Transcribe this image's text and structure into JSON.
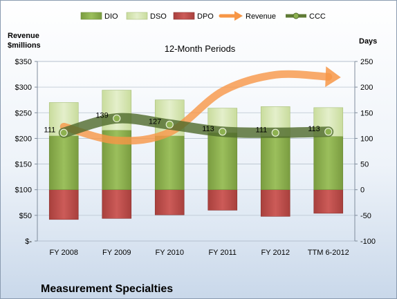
{
  "chart_data": {
    "type": "bar",
    "title": "12-Month Periods",
    "company": "Measurement Specialties",
    "left_axis": {
      "title": [
        "Revenue",
        "$millions"
      ],
      "range": [
        0,
        350
      ],
      "ticks": [
        0,
        50,
        100,
        150,
        200,
        250,
        300,
        350
      ],
      "tick_labels": [
        "$-",
        "$50",
        "$100",
        "$150",
        "$200",
        "$250",
        "$300",
        "$350"
      ]
    },
    "right_axis": {
      "title": "Days",
      "range": [
        -100,
        250
      ],
      "ticks": [
        -100,
        -50,
        0,
        50,
        100,
        150,
        200,
        250
      ],
      "tick_labels": [
        "-100",
        "-50",
        "0",
        "50",
        "100",
        "150",
        "200",
        "250"
      ]
    },
    "categories": [
      "FY 2008",
      "FY 2009",
      "FY 2010",
      "FY 2011",
      "FY 2012",
      "TTM 6-2012"
    ],
    "legend": [
      "DIO",
      "DSO",
      "DPO",
      "Revenue",
      "CCC"
    ],
    "series": [
      {
        "name": "DIO",
        "axis": "right",
        "color": "#8db150",
        "values": [
          105,
          116,
          105,
          111,
          104,
          104
        ]
      },
      {
        "name": "DSO",
        "axis": "right",
        "color": "#d5e6b1",
        "values": [
          65,
          78,
          70,
          48,
          58,
          56
        ]
      },
      {
        "name": "DPO",
        "axis": "right",
        "color": "#c0504d",
        "values": [
          -58,
          -56,
          -49,
          -40,
          -52,
          -46
        ]
      },
      {
        "name": "Revenue",
        "axis": "left",
        "color": "#f79646",
        "values": [
          223,
          196,
          212,
          292,
          324,
          320
        ]
      },
      {
        "name": "CCC",
        "axis": "right",
        "color": "#5f7a34",
        "values": [
          111,
          139,
          127,
          113,
          111,
          113
        ]
      }
    ],
    "ccc_labels": [
      "111",
      "139",
      "127",
      "113",
      "111",
      "113"
    ],
    "grid": true
  }
}
